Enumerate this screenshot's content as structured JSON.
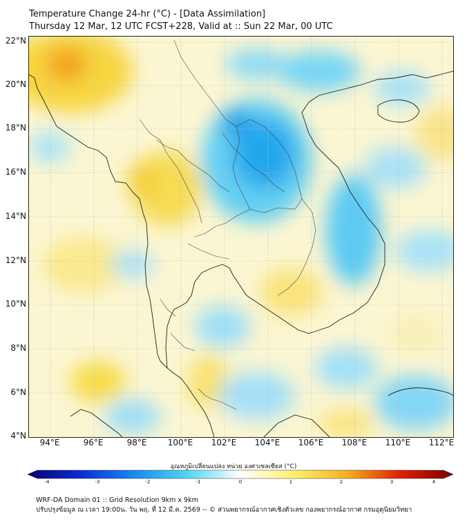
{
  "header": {
    "title_line1": "Temperature Change 24-hr (°C) - [Data Assimilation]",
    "title_line2": "Thursday 12 Mar, 12 UTC FCST+228, Valid at :: Sun 22 Mar, 00 UTC"
  },
  "map": {
    "lat_labels": [
      "22°N",
      "20°N",
      "18°N",
      "16°N",
      "14°N",
      "12°N",
      "10°N",
      "8°N",
      "6°N",
      "4°N"
    ],
    "lon_labels": [
      "94°E",
      "96°E",
      "98°E",
      "100°E",
      "102°E",
      "104°E",
      "106°E",
      "108°E",
      "110°E",
      "112°E"
    ]
  },
  "colorbar": {
    "title": "อุณหภูมิเปลี่ยนแปลง หน่วย องศาเซลเซียส (°C)",
    "ticks": [
      "-4",
      "-3",
      "-2",
      "-1",
      "0",
      "1",
      "2",
      "3",
      "4"
    ],
    "min": -4,
    "max": 4,
    "colors": [
      "#0b0070",
      "#0a2cd6",
      "#1a8af0",
      "#4fd6f5",
      "#ffffff",
      "#fff070",
      "#f5b020",
      "#e02000",
      "#7a0000"
    ]
  },
  "footer": {
    "line1": "WRF-DA Domain 01 :: Grid Resolution 9km x 9km",
    "line2": "ปรับปรุงข้อมูล ณ เวลา 19:00น. วัน พฤ. ที่ 12 มี.ค. 2569 -- © ส่วนพยากรณ์อากาศเชิงตัวเลข กองพยากรณ์อากาศ กรมอุตุนิยมวิทยา"
  }
}
